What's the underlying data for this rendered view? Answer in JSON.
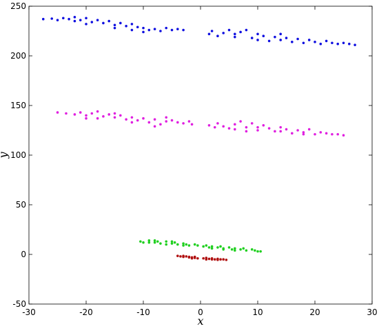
{
  "chart_data": {
    "type": "scatter",
    "xlabel": "x",
    "ylabel": "y",
    "xlim": [
      -30,
      30
    ],
    "xticks": [
      -30,
      -20,
      -10,
      0,
      10,
      20,
      30
    ],
    "ylim": [
      -50,
      250
    ],
    "yticks": [
      -50,
      0,
      50,
      100,
      150,
      200,
      250
    ],
    "series": [
      {
        "color": "#1010e0",
        "x": [
          -27.5,
          -26,
          -25,
          -24,
          -23,
          -22,
          -21,
          -20,
          -19,
          -18,
          -17,
          -16,
          -15,
          -14,
          -13,
          -12,
          -11,
          -10,
          -9,
          -8,
          -7,
          -6,
          -5,
          -4,
          -3,
          -20,
          -15,
          -10,
          -22,
          -12,
          1.5,
          2,
          3,
          4,
          5,
          6,
          7,
          8,
          9,
          10,
          11,
          12,
          13,
          14,
          15,
          16,
          17,
          18,
          19,
          20,
          21,
          22,
          23,
          24,
          25,
          26,
          27,
          10,
          14,
          6
        ],
        "values": [
          237,
          237.5,
          236,
          238,
          237,
          239,
          236,
          238,
          234,
          236,
          233,
          235,
          231,
          233,
          230,
          232,
          229,
          228,
          226,
          227,
          225,
          228,
          226,
          227,
          226,
          232,
          228,
          224,
          235,
          226,
          222,
          225,
          220,
          223,
          226,
          219,
          224,
          226,
          218,
          222,
          220,
          215,
          219,
          216,
          218,
          214,
          217,
          213,
          216,
          214,
          212,
          215,
          213,
          212,
          213,
          212,
          211,
          216,
          222,
          222
        ]
      },
      {
        "color": "#e020e0",
        "x": [
          -25,
          -23.5,
          -22,
          -21,
          -20,
          -19,
          -18,
          -17,
          -16,
          -15,
          -14,
          -13,
          -12,
          -11,
          -10,
          -9,
          -8,
          -7,
          -6,
          -5,
          -4,
          -3,
          -2,
          -1.5,
          -18,
          -12,
          -8,
          -15,
          -20,
          -6,
          1.5,
          2.5,
          3,
          4,
          5,
          6,
          7,
          8,
          9,
          10,
          11,
          12,
          13,
          14,
          15,
          16,
          17,
          18,
          19,
          20,
          21,
          22,
          23,
          24,
          25,
          10,
          14,
          8,
          18,
          6
        ],
        "values": [
          143,
          142,
          141,
          143,
          140,
          142,
          144,
          139,
          141,
          138,
          140,
          136,
          138,
          135,
          137,
          133,
          136,
          131,
          134,
          135,
          133,
          132,
          134,
          131,
          137,
          133,
          129,
          142,
          137,
          138,
          130,
          128,
          132,
          129,
          127,
          131,
          134,
          128,
          132,
          125,
          130,
          127,
          124,
          128,
          126,
          122,
          125,
          123,
          126,
          121,
          123,
          122,
          121,
          121,
          120,
          128,
          124,
          124,
          121,
          126
        ]
      },
      {
        "color": "#20d020",
        "x": [
          -10.5,
          -10,
          -9,
          -8,
          -7.5,
          -7,
          -6,
          -5,
          -4.5,
          -4,
          -3,
          -2.5,
          -2,
          -1,
          -0.5,
          -6,
          -8,
          -3,
          -9,
          -5,
          0.5,
          1,
          1.5,
          2,
          3,
          3.5,
          4,
          5,
          5.5,
          6,
          7,
          7.5,
          8,
          9,
          9.5,
          10,
          10.5,
          4,
          6,
          2
        ],
        "values": [
          13,
          12,
          14,
          12,
          13,
          11,
          13,
          11,
          12,
          10,
          11,
          10,
          9,
          10,
          9,
          10,
          14,
          9,
          12,
          13,
          8,
          9,
          7,
          8,
          7,
          8,
          6,
          7,
          5,
          6,
          5,
          6,
          4,
          5,
          4,
          3,
          3,
          5,
          4,
          6
        ]
      },
      {
        "color": "#b01010",
        "x": [
          -4,
          -3.5,
          -3,
          -2.5,
          -2,
          -1.5,
          -1,
          -0.5,
          -3,
          -2,
          -1.5,
          -1,
          0.5,
          1,
          1.5,
          2,
          2.5,
          3,
          3.5,
          4,
          4.5,
          2,
          3,
          1
        ],
        "values": [
          -1.5,
          -2,
          -2.5,
          -2,
          -3,
          -3,
          -3.5,
          -4,
          -1.5,
          -2.5,
          -4,
          -2.5,
          -4,
          -3.5,
          -4.5,
          -4,
          -5,
          -4.5,
          -5,
          -5,
          -5.5,
          -5,
          -5.5,
          -5
        ]
      }
    ]
  }
}
